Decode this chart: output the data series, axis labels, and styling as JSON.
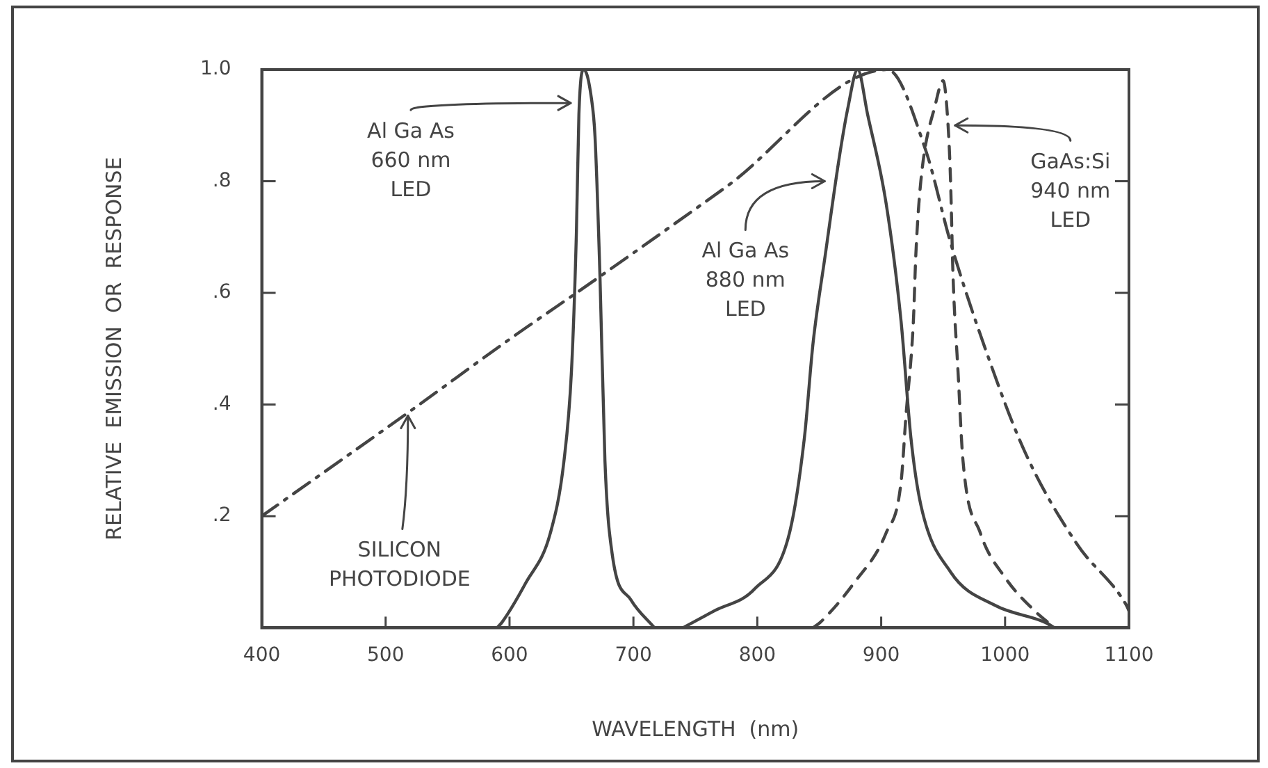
{
  "chart_data": {
    "type": "line",
    "xlabel": "WAVELENGTH  (nm)",
    "ylabel": "RELATIVE  EMISSION  OR  RESPONSE",
    "xlim": [
      400,
      1100
    ],
    "xticks": [
      400,
      500,
      600,
      700,
      800,
      900,
      1000,
      1100
    ],
    "ylim": [
      0,
      1
    ],
    "yticks": [
      {
        "value": 0.2,
        "label": ".2"
      },
      {
        "value": 0.4,
        "label": ".4"
      },
      {
        "value": 0.6,
        "label": ".6"
      },
      {
        "value": 0.8,
        "label": ".8"
      },
      {
        "value": 1,
        "label": "1.0"
      }
    ],
    "grid": false,
    "legend": false,
    "marker": "none",
    "annotations": [
      {
        "text": "Al Ga As\n660 nm\nLED",
        "x": 655,
        "y": 0.94
      },
      {
        "text": "Al Ga As\n880 nm\nLED",
        "x": 860,
        "y": 0.8
      },
      {
        "text": "GaAs:Si\n940 nm\nLED",
        "x": 954,
        "y": 0.9
      },
      {
        "text": "SILICON\nPHOTODIODE",
        "x": 518,
        "y": 0.39
      }
    ],
    "series": [
      {
        "color": "#444444",
        "line_style": "solid",
        "x": [
          590,
          594,
          613,
          633,
          644,
          650,
          654,
          656,
          660,
          666,
          669,
          673,
          677,
          683,
          698,
          717
        ],
        "values": [
          0,
          0.01,
          0.08,
          0.17,
          0.3,
          0.46,
          0.71,
          0.92,
          1.0,
          0.95,
          0.88,
          0.63,
          0.3,
          0.13,
          0.05,
          0
        ]
      },
      {
        "color": "#444444",
        "line_style": "solid",
        "x": [
          740,
          765,
          798,
          826,
          838,
          845,
          855,
          866,
          873,
          881,
          889,
          904,
          916,
          924,
          932,
          956,
          992,
          1032,
          1040
        ],
        "values": [
          0,
          0.03,
          0.07,
          0.17,
          0.34,
          0.51,
          0.67,
          0.84,
          0.93,
          1.0,
          0.92,
          0.76,
          0.55,
          0.34,
          0.22,
          0.1,
          0.04,
          0.01,
          0
        ]
      },
      {
        "color": "#444444",
        "line_style": "dashed",
        "x": [
          845,
          851,
          878,
          904,
          916,
          920,
          926,
          928,
          932,
          944,
          950,
          954,
          956,
          958,
          962,
          966,
          980,
          1000,
          1024,
          1040
        ],
        "values": [
          0,
          0.01,
          0.08,
          0.17,
          0.26,
          0.38,
          0.55,
          0.67,
          0.8,
          0.94,
          0.98,
          0.9,
          0.8,
          0.63,
          0.46,
          0.3,
          0.17,
          0.09,
          0.03,
          0
        ]
      },
      {
        "color": "#444444",
        "line_style": "dashdot",
        "x": [
          400,
          521,
          602,
          667,
          775,
          905,
          936,
          956,
          984,
          1016,
          1058,
          1098,
          1100
        ],
        "values": [
          0.2,
          0.39,
          0.52,
          0.62,
          0.79,
          1.0,
          0.855,
          0.69,
          0.5,
          0.315,
          0.15,
          0.04,
          0.03
        ]
      }
    ]
  }
}
